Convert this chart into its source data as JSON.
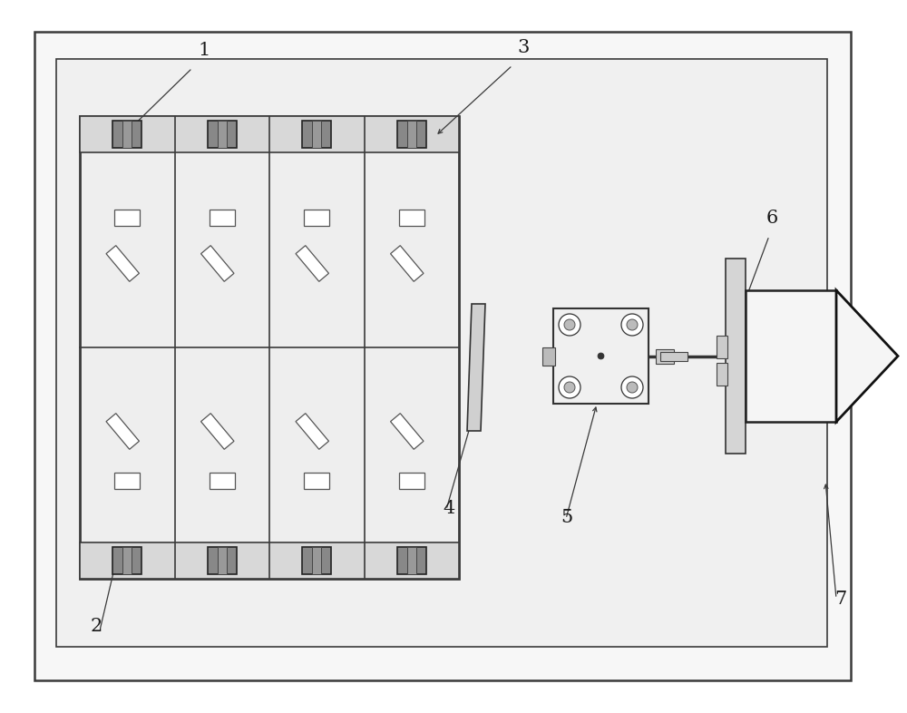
{
  "bg_color": "#ffffff",
  "line_color": "#3a3a3a",
  "label_color": "#1a1a1a",
  "fig_w": 10.0,
  "fig_h": 7.86,
  "dpi": 100
}
